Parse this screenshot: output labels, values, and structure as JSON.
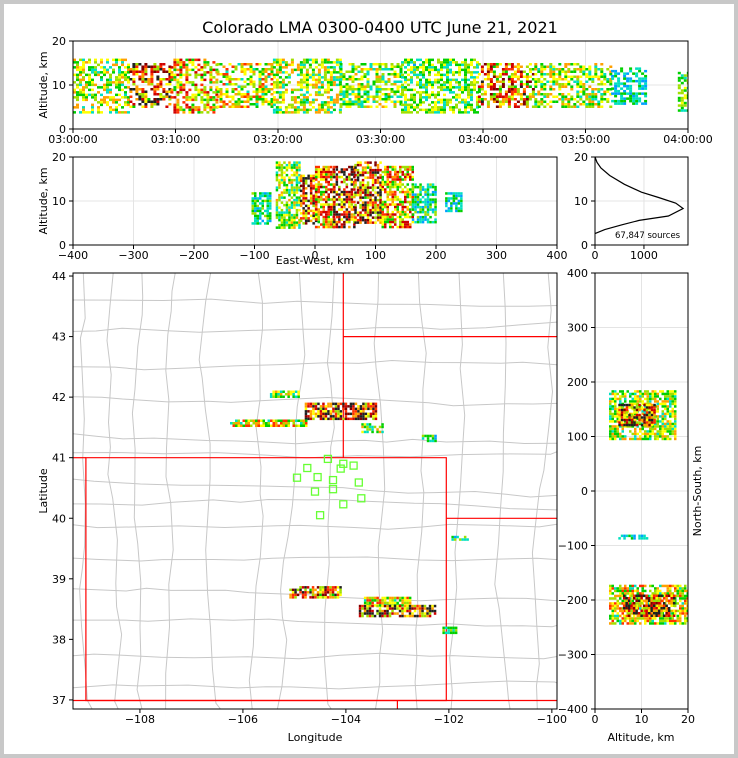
{
  "title": "Colorado LMA 0300-0400 UTC June 21, 2021",
  "colors": {
    "density_scale": [
      "#0000d0",
      "#00a0ff",
      "#00e0c0",
      "#00d000",
      "#a0e000",
      "#ffff00",
      "#ffa000",
      "#ff3000",
      "#d00000",
      "#800000",
      "#202020"
    ],
    "state_border": "#ff0000",
    "county_border": "#c8c8c8",
    "station_marker": "#66ff33"
  },
  "chart_data": [
    {
      "id": "time_height",
      "type": "heatmap",
      "xlabel": "",
      "ylabel": "Altitude, km",
      "xticks": [
        "03:00:00",
        "03:10:00",
        "03:20:00",
        "03:30:00",
        "03:40:00",
        "03:50:00",
        "04:00:00"
      ],
      "xlim_minutes": [
        0,
        60
      ],
      "ylim": [
        0,
        20
      ],
      "yticks": [
        0,
        10,
        20
      ],
      "cells": [
        {
          "t0": 0.0,
          "t1": 5.5,
          "z0": 4,
          "z1": 16,
          "d": 0.55
        },
        {
          "t0": 5.5,
          "t1": 9.5,
          "z0": 5,
          "z1": 15,
          "d": 0.9
        },
        {
          "t0": 9.5,
          "t1": 14.0,
          "z0": 4,
          "z1": 16,
          "d": 0.7
        },
        {
          "t0": 14.0,
          "t1": 19.5,
          "z0": 5,
          "z1": 15,
          "d": 0.6
        },
        {
          "t0": 19.5,
          "t1": 26.0,
          "z0": 4,
          "z1": 16,
          "d": 0.55
        },
        {
          "t0": 26.0,
          "t1": 32.0,
          "z0": 5,
          "z1": 15,
          "d": 0.5
        },
        {
          "t0": 32.0,
          "t1": 39.5,
          "z0": 4,
          "z1": 16,
          "d": 0.45
        },
        {
          "t0": 39.5,
          "t1": 45.0,
          "z0": 5,
          "z1": 15,
          "d": 0.8
        },
        {
          "t0": 45.0,
          "t1": 52.5,
          "z0": 5,
          "z1": 15,
          "d": 0.55
        },
        {
          "t0": 52.5,
          "t1": 56.0,
          "z0": 6,
          "z1": 14,
          "d": 0.3
        },
        {
          "t0": 59.0,
          "t1": 60.0,
          "z0": 4,
          "z1": 13,
          "d": 0.45
        }
      ]
    },
    {
      "id": "east_west_altitude",
      "type": "heatmap",
      "xlabel": "East-West, km",
      "ylabel": "Altitude, km",
      "xlim": [
        -400,
        400
      ],
      "xticks": [
        -400,
        -300,
        -200,
        -100,
        0,
        100,
        200,
        300,
        400
      ],
      "ylim": [
        0,
        20
      ],
      "yticks": [
        0,
        10,
        20
      ],
      "cells": [
        {
          "x0": -105,
          "x1": -75,
          "z0": 5,
          "z1": 12,
          "d": 0.35
        },
        {
          "x0": -65,
          "x1": -25,
          "z0": 4,
          "z1": 19,
          "d": 0.5
        },
        {
          "x0": -25,
          "x1": 0,
          "z0": 5,
          "z1": 16,
          "d": 0.95
        },
        {
          "x0": 0,
          "x1": 30,
          "z0": 4,
          "z1": 18,
          "d": 0.75
        },
        {
          "x0": 30,
          "x1": 65,
          "z0": 4,
          "z1": 18,
          "d": 0.97
        },
        {
          "x0": 65,
          "x1": 110,
          "z0": 5,
          "z1": 19,
          "d": 0.9
        },
        {
          "x0": 110,
          "x1": 160,
          "z0": 4,
          "z1": 18,
          "d": 0.7
        },
        {
          "x0": 160,
          "x1": 200,
          "z0": 5,
          "z1": 14,
          "d": 0.35
        },
        {
          "x0": 215,
          "x1": 240,
          "z0": 8,
          "z1": 12,
          "d": 0.3
        }
      ]
    },
    {
      "id": "source_count_altitude",
      "type": "line",
      "xlim": [
        0,
        1900
      ],
      "xticks": [
        0,
        1000
      ],
      "ylim": [
        0,
        20
      ],
      "yticks": [
        0,
        10,
        20
      ],
      "annotation": "67,847 sources",
      "profile": [
        {
          "count": 0,
          "alt": 2.6
        },
        {
          "count": 200,
          "alt": 3.5
        },
        {
          "count": 550,
          "alt": 4.6
        },
        {
          "count": 900,
          "alt": 5.6
        },
        {
          "count": 1500,
          "alt": 6.6
        },
        {
          "count": 1800,
          "alt": 8.3
        },
        {
          "count": 1650,
          "alt": 9.5
        },
        {
          "count": 1300,
          "alt": 10.8
        },
        {
          "count": 950,
          "alt": 12.0
        },
        {
          "count": 600,
          "alt": 13.8
        },
        {
          "count": 300,
          "alt": 15.8
        },
        {
          "count": 120,
          "alt": 17.5
        },
        {
          "count": 40,
          "alt": 18.8
        },
        {
          "count": 0,
          "alt": 20.0
        }
      ]
    },
    {
      "id": "plan_view",
      "type": "scatter",
      "xlabel": "Longitude",
      "ylabel": "Latitude",
      "xlim": [
        -109.3,
        -99.9
      ],
      "xticks": [
        -108,
        -106,
        -104,
        -102,
        -100
      ],
      "xtick_labels": [
        "−108",
        "−106",
        "−104",
        "−102",
        "−100"
      ],
      "ylim": [
        36.85,
        44.05
      ],
      "yticks": [
        37,
        38,
        39,
        40,
        41,
        42,
        43,
        44
      ],
      "storm_cells": [
        {
          "lon": -105.2,
          "lat": 42.05,
          "w": 0.55,
          "h": 0.12,
          "d": 0.5
        },
        {
          "lon": -104.1,
          "lat": 41.77,
          "w": 1.4,
          "h": 0.28,
          "d": 0.95
        },
        {
          "lon": -105.5,
          "lat": 41.57,
          "w": 1.5,
          "h": 0.12,
          "d": 0.6
        },
        {
          "lon": -103.5,
          "lat": 41.5,
          "w": 0.4,
          "h": 0.14,
          "d": 0.5
        },
        {
          "lon": -102.4,
          "lat": 41.32,
          "w": 0.25,
          "h": 0.12,
          "d": 0.35
        },
        {
          "lon": -101.8,
          "lat": 39.68,
          "w": 0.3,
          "h": 0.06,
          "d": 0.35
        },
        {
          "lon": -104.6,
          "lat": 38.78,
          "w": 1.0,
          "h": 0.2,
          "d": 0.85
        },
        {
          "lon": -103.2,
          "lat": 38.63,
          "w": 0.9,
          "h": 0.15,
          "d": 0.6
        },
        {
          "lon": -103.0,
          "lat": 38.47,
          "w": 1.5,
          "h": 0.2,
          "d": 0.95
        },
        {
          "lon": -102.0,
          "lat": 38.15,
          "w": 0.25,
          "h": 0.12,
          "d": 0.4
        }
      ],
      "stations": [
        {
          "lon": -104.35,
          "lat": 40.98
        },
        {
          "lon": -104.05,
          "lat": 40.9
        },
        {
          "lon": -103.85,
          "lat": 40.87
        },
        {
          "lon": -104.75,
          "lat": 40.83
        },
        {
          "lon": -104.1,
          "lat": 40.82
        },
        {
          "lon": -104.55,
          "lat": 40.68
        },
        {
          "lon": -104.95,
          "lat": 40.67
        },
        {
          "lon": -104.25,
          "lat": 40.63
        },
        {
          "lon": -103.75,
          "lat": 40.59
        },
        {
          "lon": -104.6,
          "lat": 40.44
        },
        {
          "lon": -104.25,
          "lat": 40.48
        },
        {
          "lon": -103.7,
          "lat": 40.33
        },
        {
          "lon": -104.05,
          "lat": 40.23
        },
        {
          "lon": -104.5,
          "lat": 40.05
        }
      ]
    },
    {
      "id": "altitude_north_south",
      "type": "heatmap",
      "xlabel": "Altitude, km",
      "ylabel": "North-South, km",
      "xlim": [
        0,
        20
      ],
      "xticks": [
        0,
        10,
        20
      ],
      "ylim": [
        -400,
        400
      ],
      "yticks": [
        -400,
        -300,
        -200,
        -100,
        0,
        100,
        200,
        300,
        400
      ],
      "cells": [
        {
          "z0": 3,
          "z1": 17,
          "y0": 95,
          "y1": 185,
          "d": 0.55
        },
        {
          "z0": 5,
          "z1": 13,
          "y0": 120,
          "y1": 160,
          "d": 0.97
        },
        {
          "z0": 5,
          "z1": 11,
          "y0": -87,
          "y1": -80,
          "d": 0.3
        },
        {
          "z0": 3,
          "z1": 20,
          "y0": -245,
          "y1": -172,
          "d": 0.6
        },
        {
          "z0": 6,
          "z1": 17,
          "y0": -230,
          "y1": -190,
          "d": 0.97
        }
      ]
    }
  ]
}
